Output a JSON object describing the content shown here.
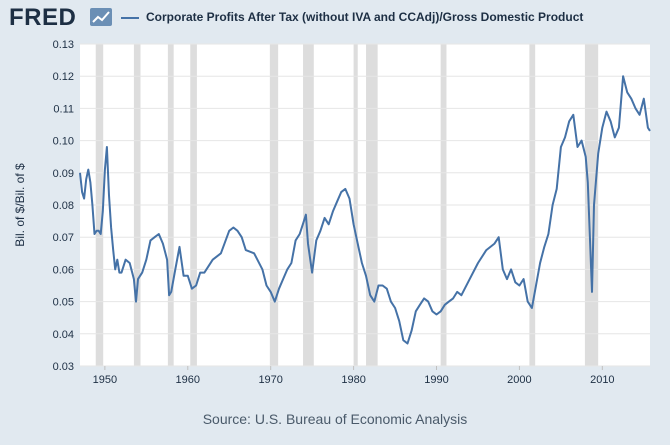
{
  "logo_text": "FRED",
  "source": "Source: U.S. Bureau of Economic Analysis",
  "colors": {
    "line": "#4572a7",
    "background": "#e1e9f0",
    "plot": "#ffffff",
    "recession": "#dddddd",
    "text": "#1d2f44"
  },
  "chart_data": {
    "type": "line",
    "title": "",
    "xlabel": "",
    "ylabel": "Bil. of $/Bil. of $",
    "xlim": [
      1947,
      2015.75
    ],
    "ylim": [
      0.03,
      0.13
    ],
    "xticks": [
      "1950",
      "1960",
      "1970",
      "1980",
      "1990",
      "2000",
      "2010"
    ],
    "yticks": [
      "0.03",
      "0.04",
      "0.05",
      "0.06",
      "0.07",
      "0.08",
      "0.09",
      "0.10",
      "0.11",
      "0.12",
      "0.13"
    ],
    "grid": true,
    "legend_position": "top",
    "recessions": [
      [
        1948.9,
        1949.8
      ],
      [
        1953.5,
        1954.3
      ],
      [
        1957.6,
        1958.3
      ],
      [
        1960.3,
        1961.1
      ],
      [
        1969.9,
        1970.9
      ],
      [
        1973.9,
        1975.2
      ],
      [
        1980.0,
        1980.5
      ],
      [
        1981.5,
        1982.9
      ],
      [
        1990.5,
        1991.2
      ],
      [
        2001.2,
        2001.9
      ],
      [
        2007.9,
        2009.5
      ]
    ],
    "series": [
      {
        "name": "Corporate Profits After Tax (without IVA and CCAdj)/Gross Domestic Product",
        "x": [
          1947.0,
          1947.25,
          1947.5,
          1947.75,
          1948.0,
          1948.25,
          1948.5,
          1948.75,
          1949.0,
          1949.25,
          1949.5,
          1949.75,
          1950.0,
          1950.25,
          1950.5,
          1950.75,
          1951.0,
          1951.25,
          1951.5,
          1951.75,
          1952.0,
          1952.5,
          1953.0,
          1953.5,
          1953.75,
          1954.0,
          1954.5,
          1955.0,
          1955.5,
          1956.0,
          1956.5,
          1957.0,
          1957.5,
          1957.75,
          1958.0,
          1958.5,
          1959.0,
          1959.5,
          1960.0,
          1960.5,
          1961.0,
          1961.5,
          1962.0,
          1963.0,
          1964.0,
          1965.0,
          1965.5,
          1966.0,
          1966.5,
          1967.0,
          1968.0,
          1969.0,
          1969.5,
          1970.0,
          1970.5,
          1971.0,
          1971.5,
          1972.0,
          1972.5,
          1973.0,
          1973.5,
          1974.0,
          1974.25,
          1974.5,
          1975.0,
          1975.5,
          1976.0,
          1976.5,
          1977.0,
          1977.5,
          1978.0,
          1978.5,
          1979.0,
          1979.5,
          1980.0,
          1980.5,
          1981.0,
          1981.5,
          1982.0,
          1982.5,
          1983.0,
          1983.5,
          1984.0,
          1984.5,
          1985.0,
          1985.5,
          1986.0,
          1986.5,
          1987.0,
          1987.5,
          1988.0,
          1988.5,
          1989.0,
          1989.5,
          1990.0,
          1990.5,
          1991.0,
          1991.5,
          1992.0,
          1992.5,
          1993.0,
          1994.0,
          1995.0,
          1996.0,
          1997.0,
          1997.5,
          1998.0,
          1998.5,
          1999.0,
          1999.5,
          2000.0,
          2000.5,
          2001.0,
          2001.5,
          2002.0,
          2002.5,
          2003.0,
          2003.5,
          2004.0,
          2004.5,
          2005.0,
          2005.5,
          2006.0,
          2006.5,
          2007.0,
          2007.5,
          2008.0,
          2008.25,
          2008.5,
          2008.75,
          2009.0,
          2009.25,
          2009.5,
          2010.0,
          2010.5,
          2011.0,
          2011.5,
          2012.0,
          2012.25,
          2012.5,
          2013.0,
          2013.5,
          2014.0,
          2014.5,
          2015.0,
          2015.5,
          2015.75
        ],
        "values": [
          0.09,
          0.084,
          0.082,
          0.088,
          0.091,
          0.087,
          0.08,
          0.071,
          0.072,
          0.072,
          0.071,
          0.078,
          0.091,
          0.098,
          0.083,
          0.073,
          0.066,
          0.06,
          0.063,
          0.059,
          0.059,
          0.063,
          0.062,
          0.057,
          0.05,
          0.057,
          0.059,
          0.063,
          0.069,
          0.07,
          0.071,
          0.068,
          0.063,
          0.052,
          0.053,
          0.06,
          0.067,
          0.058,
          0.058,
          0.054,
          0.055,
          0.059,
          0.059,
          0.063,
          0.065,
          0.072,
          0.073,
          0.072,
          0.07,
          0.066,
          0.065,
          0.06,
          0.055,
          0.053,
          0.05,
          0.054,
          0.057,
          0.06,
          0.062,
          0.069,
          0.071,
          0.075,
          0.077,
          0.068,
          0.059,
          0.069,
          0.072,
          0.076,
          0.074,
          0.078,
          0.081,
          0.084,
          0.085,
          0.082,
          0.074,
          0.068,
          0.062,
          0.058,
          0.052,
          0.05,
          0.055,
          0.055,
          0.054,
          0.05,
          0.048,
          0.044,
          0.038,
          0.037,
          0.041,
          0.047,
          0.049,
          0.051,
          0.05,
          0.047,
          0.046,
          0.047,
          0.049,
          0.05,
          0.051,
          0.053,
          0.052,
          0.057,
          0.062,
          0.066,
          0.068,
          0.07,
          0.06,
          0.057,
          0.06,
          0.056,
          0.055,
          0.057,
          0.05,
          0.048,
          0.055,
          0.062,
          0.067,
          0.071,
          0.08,
          0.085,
          0.098,
          0.101,
          0.106,
          0.108,
          0.098,
          0.1,
          0.095,
          0.087,
          0.07,
          0.053,
          0.08,
          0.088,
          0.096,
          0.104,
          0.109,
          0.106,
          0.101,
          0.104,
          0.112,
          0.12,
          0.115,
          0.113,
          0.11,
          0.108,
          0.113,
          0.104,
          0.103
        ]
      }
    ]
  }
}
